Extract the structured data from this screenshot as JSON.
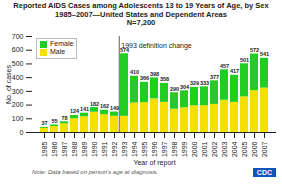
{
  "chart_data": {
    "type": "bar",
    "stacked": true,
    "title": "Reported AIDS Cases among Adolescents 13 to 19 Years of Age, by Sex 1985–2007—United States and Dependent Areas",
    "subtitle": "N=7,200",
    "xlabel": "Year of report",
    "ylabel": "No. of cases",
    "categories": [
      "1985",
      "1986",
      "1987",
      "1988",
      "1989",
      "1990",
      "1991",
      "1992",
      "1993",
      "1994",
      "1995",
      "1996",
      "1997",
      "1998",
      "1999",
      "2000",
      "2001",
      "2002",
      "2003",
      "2004",
      "2005",
      "2006",
      "2007"
    ],
    "series": [
      {
        "name": "Male",
        "color": "#f5e000",
        "values": [
          30,
          44,
          63,
          100,
          115,
          148,
          130,
          118,
          118,
          215,
          218,
          245,
          220,
          170,
          180,
          195,
          195,
          205,
          235,
          220,
          260,
          305,
          324
        ]
      },
      {
        "name": "Female",
        "color": "#22cc22",
        "values": [
          7,
          11,
          15,
          24,
          26,
          34,
          32,
          31,
          456,
          195,
          148,
          153,
          138,
          120,
          124,
          134,
          138,
          172,
          222,
          197,
          241,
          267,
          217
        ]
      }
    ],
    "totals": [
      37,
      55,
      78,
      124,
      141,
      182,
      162,
      149,
      574,
      410,
      366,
      398,
      358,
      290,
      304,
      329,
      333,
      377,
      457,
      417,
      501,
      572,
      541
    ],
    "ylim": [
      0,
      700
    ],
    "yticks": [
      0,
      100,
      200,
      300,
      400,
      500,
      600,
      700
    ],
    "legend": "upper left",
    "annotations": [
      {
        "text": "1993 definition change",
        "vline_before": "1993",
        "y": 650
      }
    ],
    "caption": "Note: Data based on person's age at diagnosis.",
    "logo": {
      "text": "CDC",
      "color": "#1155bb"
    }
  }
}
